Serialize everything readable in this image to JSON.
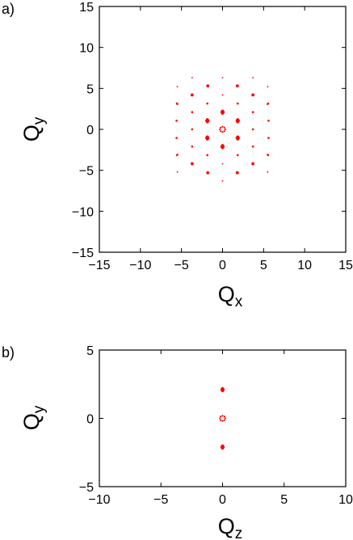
{
  "chart_data": [
    {
      "panel_label": "a)",
      "type": "scatter",
      "title": "",
      "xlabel": {
        "main": "Q",
        "sub": "x"
      },
      "ylabel": {
        "main": "Q",
        "sub": "y"
      },
      "xlim": [
        -15,
        15
      ],
      "ylim": [
        -15,
        15
      ],
      "xticks": [
        -15,
        -10,
        -5,
        0,
        5,
        10,
        15
      ],
      "yticks": [
        -15,
        -10,
        -5,
        0,
        5,
        10,
        15
      ],
      "xtick_labels": [
        "−15",
        "−10",
        "−5",
        "0",
        "5",
        "10",
        "15"
      ],
      "ytick_labels": [
        "−15",
        "−10",
        "−5",
        "0",
        "5",
        "10",
        "15"
      ],
      "grid": false,
      "color": "#ff0000",
      "points": [
        {
          "x": 0,
          "y": 0,
          "m": "ring"
        },
        {
          "x": 0,
          "y": 2.1,
          "m": "l"
        },
        {
          "x": 0,
          "y": -2.1,
          "m": "l"
        },
        {
          "x": -1.85,
          "y": 1.05,
          "m": "l"
        },
        {
          "x": 1.85,
          "y": 1.05,
          "m": "l"
        },
        {
          "x": -1.85,
          "y": -1.05,
          "m": "l"
        },
        {
          "x": 1.85,
          "y": -1.05,
          "m": "l"
        },
        {
          "x": 0,
          "y": 6.3,
          "m": "t"
        },
        {
          "x": 0,
          "y": -6.3,
          "m": "t"
        },
        {
          "x": -1.8,
          "y": 5.3,
          "m": "m"
        },
        {
          "x": 1.8,
          "y": 5.3,
          "m": "m"
        },
        {
          "x": -1.8,
          "y": -5.3,
          "m": "m"
        },
        {
          "x": 1.8,
          "y": -5.3,
          "m": "m"
        },
        {
          "x": -3.7,
          "y": 4.2,
          "m": "m"
        },
        {
          "x": 3.7,
          "y": 4.2,
          "m": "m"
        },
        {
          "x": -3.7,
          "y": -4.2,
          "m": "m"
        },
        {
          "x": 3.7,
          "y": -4.2,
          "m": "m"
        },
        {
          "x": -1.85,
          "y": 3.15,
          "m": "s"
        },
        {
          "x": 1.85,
          "y": 3.15,
          "m": "s"
        },
        {
          "x": -1.85,
          "y": -3.15,
          "m": "s"
        },
        {
          "x": 1.85,
          "y": -3.15,
          "m": "s"
        },
        {
          "x": -3.7,
          "y": 2.1,
          "m": "s"
        },
        {
          "x": 3.7,
          "y": 2.1,
          "m": "s"
        },
        {
          "x": -3.7,
          "y": -2.1,
          "m": "s"
        },
        {
          "x": 3.7,
          "y": -2.1,
          "m": "s"
        },
        {
          "x": -3.7,
          "y": 0,
          "m": "s"
        },
        {
          "x": 3.7,
          "y": 0,
          "m": "s"
        },
        {
          "x": -5.5,
          "y": 3.1,
          "m": "s"
        },
        {
          "x": 5.5,
          "y": 3.1,
          "m": "s"
        },
        {
          "x": -5.5,
          "y": -3.1,
          "m": "s"
        },
        {
          "x": 5.5,
          "y": -3.1,
          "m": "s"
        },
        {
          "x": -5.6,
          "y": 1.05,
          "m": "s"
        },
        {
          "x": 5.6,
          "y": 1.05,
          "m": "s"
        },
        {
          "x": -5.6,
          "y": -1.05,
          "m": "s"
        },
        {
          "x": 5.6,
          "y": -1.05,
          "m": "s"
        },
        {
          "x": 0,
          "y": 4.2,
          "m": "t"
        },
        {
          "x": 0,
          "y": -4.2,
          "m": "t"
        },
        {
          "x": -3.7,
          "y": 6.3,
          "m": "t"
        },
        {
          "x": 3.7,
          "y": 6.3,
          "m": "t"
        },
        {
          "x": -5.5,
          "y": 5.2,
          "m": "t"
        },
        {
          "x": 5.5,
          "y": 5.2,
          "m": "t"
        },
        {
          "x": -5.5,
          "y": -5.2,
          "m": "t"
        },
        {
          "x": 5.5,
          "y": -5.2,
          "m": "t"
        },
        {
          "x": -5.6,
          "y": 3.2,
          "m": "t"
        },
        {
          "x": 5.6,
          "y": 3.2,
          "m": "t"
        },
        {
          "x": -5.6,
          "y": -3.2,
          "m": "t"
        },
        {
          "x": 5.6,
          "y": -3.2,
          "m": "t"
        }
      ]
    },
    {
      "panel_label": "b)",
      "type": "scatter",
      "title": "",
      "xlabel": {
        "main": "Q",
        "sub": "z"
      },
      "ylabel": {
        "main": "Q",
        "sub": "y"
      },
      "xlim": [
        -10,
        10
      ],
      "ylim": [
        -5,
        5
      ],
      "xticks": [
        -10,
        -5,
        0,
        5,
        10
      ],
      "yticks": [
        -5,
        0,
        5
      ],
      "xtick_labels": [
        "−10",
        "−5",
        "0",
        "5",
        "10"
      ],
      "ytick_labels": [
        "−5",
        "0",
        "5"
      ],
      "grid": false,
      "color": "#ff0000",
      "points": [
        {
          "x": 0,
          "y": 0,
          "m": "ring"
        },
        {
          "x": 0,
          "y": 2.1,
          "m": "l"
        },
        {
          "x": 0,
          "y": -2.1,
          "m": "l"
        }
      ]
    }
  ]
}
